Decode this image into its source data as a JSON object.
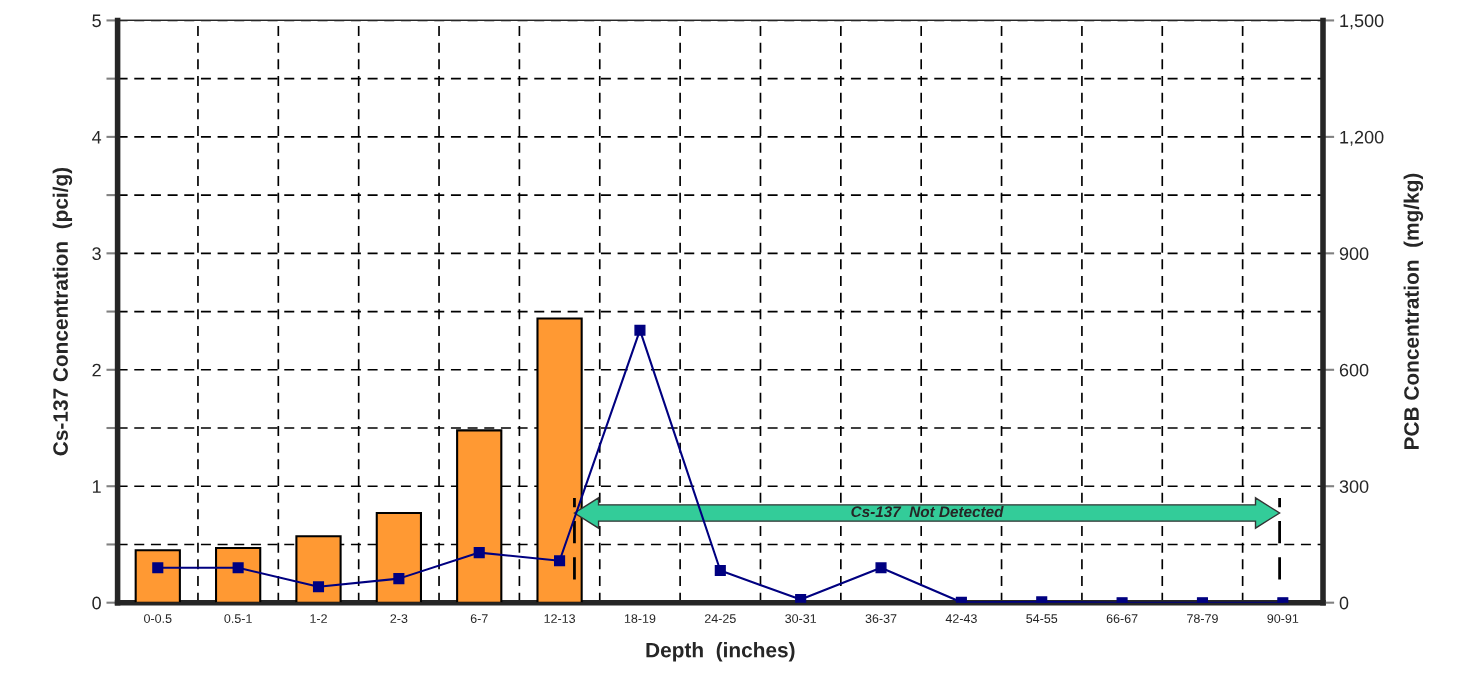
{
  "chart_data": {
    "type": "bar",
    "categories": [
      "0-0.5",
      "0.5-1",
      "1-2",
      "2-3",
      "6-7",
      "12-13",
      "18-19",
      "24-25",
      "30-31",
      "36-37",
      "42-43",
      "54-55",
      "66-67",
      "78-79",
      "90-91"
    ],
    "series": [
      {
        "color": "#ff9933",
        "values": [
          0.45,
          0.47,
          0.57,
          0.77,
          1.48,
          2.44,
          null,
          null,
          null,
          null,
          null,
          null,
          null,
          null,
          null
        ]
      },
      {
        "type": "line",
        "axis": "y2",
        "color": "#000080",
        "marker": "square",
        "line_style": "solid",
        "values": [
          90,
          90,
          41,
          62,
          129,
          108,
          702,
          83,
          8,
          90,
          1,
          2,
          0,
          0,
          0
        ]
      }
    ],
    "xlabel": "Depth  (inches)",
    "ylabel": "Cs-137 Concentration  (pci/g)",
    "y2label": "PCB Concentration  (mg/kg)",
    "ylim": [
      0,
      5
    ],
    "yticks": [
      0,
      {
        "value": 0.5,
        "label": null
      },
      1,
      {
        "value": 1.5,
        "label": null
      },
      2,
      {
        "value": 2.5,
        "label": null
      },
      3,
      {
        "value": 3.5,
        "label": null
      },
      4,
      {
        "value": 4.5,
        "label": null
      },
      5
    ],
    "y2lim": [
      0,
      1500
    ],
    "y2ticks": [
      0,
      300,
      600,
      900,
      {
        "value": 1200,
        "label": "1,200"
      },
      {
        "value": 1500,
        "label": "1,500"
      }
    ],
    "annotations": [
      "Cs-137  Not Detected"
    ],
    "grid": true
  }
}
